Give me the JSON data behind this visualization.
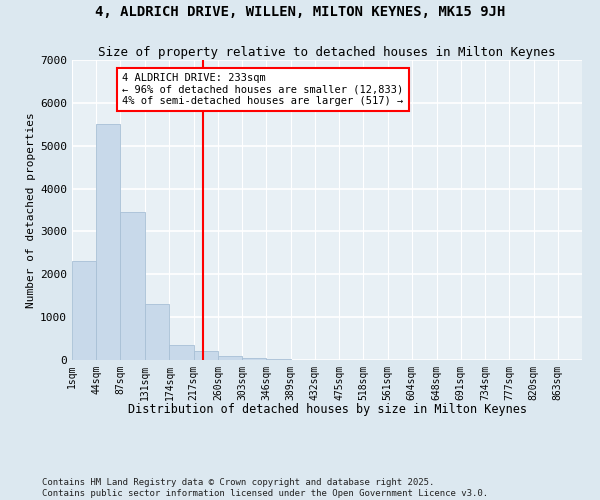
{
  "title": "4, ALDRICH DRIVE, WILLEN, MILTON KEYNES, MK15 9JH",
  "subtitle": "Size of property relative to detached houses in Milton Keynes",
  "xlabel": "Distribution of detached houses by size in Milton Keynes",
  "ylabel": "Number of detached properties",
  "bar_color": "#c8d9ea",
  "bar_edge_color": "#a8c0d6",
  "vline_color": "red",
  "vline_x": 233,
  "bins_left_edges": [
    1,
    44,
    87,
    131,
    174,
    217,
    260,
    303,
    346,
    389,
    432,
    475,
    518,
    561,
    604,
    648,
    691,
    734,
    777,
    820
  ],
  "bin_width": 43,
  "bar_heights": [
    2300,
    5500,
    3450,
    1300,
    350,
    200,
    100,
    50,
    20,
    10,
    5,
    5,
    5,
    5,
    5,
    5,
    5,
    5,
    5,
    5
  ],
  "xlim_left": 1,
  "xlim_right": 863,
  "ylim_top": 7000,
  "ylim_bottom": 0,
  "yticks": [
    0,
    1000,
    2000,
    3000,
    4000,
    5000,
    6000,
    7000
  ],
  "xtick_labels": [
    "1sqm",
    "44sqm",
    "87sqm",
    "131sqm",
    "174sqm",
    "217sqm",
    "260sqm",
    "303sqm",
    "346sqm",
    "389sqm",
    "432sqm",
    "475sqm",
    "518sqm",
    "561sqm",
    "604sqm",
    "648sqm",
    "691sqm",
    "734sqm",
    "777sqm",
    "820sqm",
    "863sqm"
  ],
  "annotation_text": "4 ALDRICH DRIVE: 233sqm\n← 96% of detached houses are smaller (12,833)\n4% of semi-detached houses are larger (517) →",
  "annotation_box_color": "white",
  "annotation_box_edge_color": "red",
  "footer_text": "Contains HM Land Registry data © Crown copyright and database right 2025.\nContains public sector information licensed under the Open Government Licence v3.0.",
  "background_color": "#dce8f0",
  "plot_background_color": "#e8f0f5",
  "grid_color": "white",
  "title_fontsize": 10,
  "subtitle_fontsize": 9,
  "tick_fontsize": 7,
  "ylabel_fontsize": 8,
  "xlabel_fontsize": 8.5,
  "annotation_fontsize": 7.5,
  "footer_fontsize": 6.5
}
